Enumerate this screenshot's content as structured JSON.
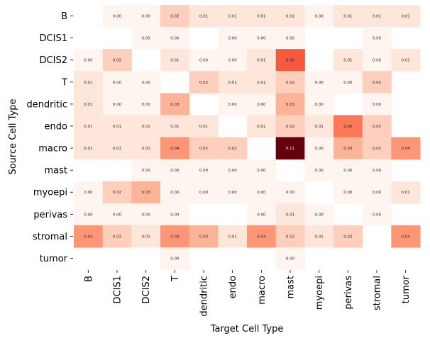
{
  "chart_data": {
    "type": "heatmap",
    "title": "",
    "xlabel": "Target Cell Type",
    "ylabel": "Source Cell Type",
    "x_categories": [
      "B",
      "DCIS1",
      "DCIS2",
      "T",
      "dendritic",
      "endo",
      "macro",
      "mast",
      "myoepi",
      "perivas",
      "stromal",
      "tumor"
    ],
    "y_categories": [
      "B",
      "DCIS1",
      "DCIS2",
      "T",
      "dendritic",
      "endo",
      "macro",
      "mast",
      "myoepi",
      "perivas",
      "stromal",
      "tumor"
    ],
    "value_range": [
      0,
      0.11
    ],
    "colormap": "Reds",
    "values": [
      [
        null,
        0.0,
        0.0,
        0.02,
        0.01,
        0.01,
        0.01,
        0.01,
        0.0,
        0.01,
        0.01,
        0.01
      ],
      [
        null,
        null,
        0.0,
        0.0,
        null,
        0.0,
        0.0,
        0.0,
        null,
        null,
        0.0,
        null
      ],
      [
        0.0,
        0.02,
        null,
        0.01,
        0.0,
        0.0,
        0.01,
        0.06,
        null,
        0.01,
        0.0,
        0.01
      ],
      [
        0.01,
        0.0,
        0.0,
        null,
        0.02,
        0.01,
        0.01,
        0.02,
        0.0,
        0.0,
        0.02,
        null
      ],
      [
        0.01,
        0.0,
        0.0,
        0.03,
        null,
        0.0,
        0.0,
        0.03,
        0.0,
        null,
        0.0,
        null
      ],
      [
        0.01,
        0.01,
        0.01,
        0.01,
        0.01,
        null,
        0.01,
        0.02,
        0.01,
        0.05,
        0.02,
        null
      ],
      [
        0.01,
        0.01,
        0.01,
        0.04,
        0.02,
        0.02,
        null,
        0.11,
        0.0,
        0.03,
        0.02,
        0.04
      ],
      [
        null,
        null,
        0.0,
        0.0,
        0.0,
        0.0,
        0.0,
        null,
        0.0,
        0.0,
        0.0,
        null
      ],
      [
        0.0,
        0.02,
        0.03,
        0.0,
        0.0,
        0.0,
        0.0,
        0.0,
        null,
        0.0,
        0.0,
        0.01
      ],
      [
        0.0,
        0.0,
        0.0,
        0.0,
        null,
        null,
        0.0,
        0.01,
        0.0,
        null,
        0.0,
        null
      ],
      [
        0.04,
        0.02,
        0.01,
        0.04,
        0.03,
        0.01,
        0.04,
        0.02,
        0.01,
        0.02,
        null,
        0.04
      ],
      [
        null,
        null,
        null,
        0.0,
        null,
        null,
        null,
        0.0,
        null,
        null,
        null,
        null
      ]
    ]
  }
}
